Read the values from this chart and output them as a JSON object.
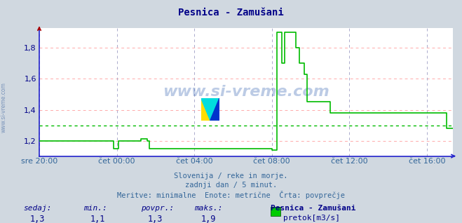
{
  "title": "Pesnica - Zamušani",
  "bg_color": "#d0d8e0",
  "plot_bg_color": "#ffffff",
  "line_color": "#00bb00",
  "avg_line_color": "#00bb00",
  "grid_color_h": "#ffaaaa",
  "grid_color_v": "#aaaacc",
  "axis_color": "#2222cc",
  "text_color": "#000088",
  "xlabel_color": "#336699",
  "ylim_min": 1.1,
  "ylim_max": 1.93,
  "yticks": [
    1.2,
    1.4,
    1.6,
    1.8
  ],
  "ytick_labels": [
    "1,2",
    "1,4",
    "1,6",
    "1,8"
  ],
  "avg_value": 1.3,
  "subtitle1": "Slovenija / reke in morje.",
  "subtitle2": "zadnji dan / 5 minut.",
  "subtitle3": "Meritve: minimalne  Enote: metrične  Črta: povprečje",
  "footer_labels": [
    "sedaj:",
    "min.:",
    "povpr.:",
    "maks.:"
  ],
  "footer_values": [
    "1,3",
    "1,1",
    "1,3",
    "1,9"
  ],
  "legend_title": "Pesnica - Zamušani",
  "legend_label": "pretok[m3/s]",
  "legend_color": "#00cc00",
  "watermark": "www.si-vreme.com",
  "x_tick_labels": [
    "sre 20:00",
    "čet 00:00",
    "čet 04:00",
    "čet 08:00",
    "čet 12:00",
    "čet 16:00"
  ],
  "x_tick_positions": [
    0,
    48,
    96,
    144,
    192,
    240
  ],
  "series": [
    1.2,
    1.2,
    1.2,
    1.2,
    1.2,
    1.2,
    1.2,
    1.2,
    1.2,
    1.2,
    1.2,
    1.2,
    1.2,
    1.2,
    1.2,
    1.2,
    1.2,
    1.2,
    1.2,
    1.2,
    1.2,
    1.2,
    1.2,
    1.2,
    1.2,
    1.2,
    1.2,
    1.2,
    1.2,
    1.2,
    1.2,
    1.2,
    1.2,
    1.2,
    1.2,
    1.2,
    1.2,
    1.2,
    1.2,
    1.2,
    1.2,
    1.2,
    1.2,
    1.2,
    1.2,
    1.2,
    1.15,
    1.15,
    1.15,
    1.2,
    1.2,
    1.2,
    1.2,
    1.2,
    1.2,
    1.2,
    1.2,
    1.2,
    1.2,
    1.2,
    1.2,
    1.2,
    1.2,
    1.21,
    1.21,
    1.21,
    1.21,
    1.2,
    1.15,
    1.15,
    1.15,
    1.15,
    1.15,
    1.15,
    1.15,
    1.15,
    1.15,
    1.15,
    1.15,
    1.15,
    1.15,
    1.15,
    1.15,
    1.15,
    1.15,
    1.15,
    1.15,
    1.15,
    1.15,
    1.15,
    1.15,
    1.15,
    1.15,
    1.15,
    1.15,
    1.15,
    1.15,
    1.15,
    1.15,
    1.15,
    1.15,
    1.15,
    1.15,
    1.15,
    1.15,
    1.15,
    1.15,
    1.15,
    1.15,
    1.15,
    1.15,
    1.15,
    1.15,
    1.15,
    1.15,
    1.15,
    1.15,
    1.15,
    1.15,
    1.15,
    1.15,
    1.15,
    1.15,
    1.15,
    1.15,
    1.15,
    1.15,
    1.15,
    1.15,
    1.15,
    1.15,
    1.15,
    1.15,
    1.15,
    1.15,
    1.15,
    1.15,
    1.15,
    1.15,
    1.15,
    1.15,
    1.15,
    1.15,
    1.15,
    1.14,
    1.14,
    1.14,
    1.9,
    1.9,
    1.9,
    1.7,
    1.7,
    1.9,
    1.9,
    1.9,
    1.9,
    1.9,
    1.9,
    1.9,
    1.8,
    1.8,
    1.7,
    1.7,
    1.7,
    1.63,
    1.63,
    1.45,
    1.45,
    1.45,
    1.45,
    1.45,
    1.45,
    1.45,
    1.45,
    1.45,
    1.45,
    1.45,
    1.45,
    1.45,
    1.45,
    1.38,
    1.38,
    1.38,
    1.38,
    1.38,
    1.38,
    1.38,
    1.38,
    1.38,
    1.38,
    1.38,
    1.38,
    1.38,
    1.38,
    1.38,
    1.38,
    1.38,
    1.38,
    1.38,
    1.38,
    1.38,
    1.38,
    1.38,
    1.38,
    1.38,
    1.38,
    1.38,
    1.38,
    1.38,
    1.38,
    1.38,
    1.38,
    1.38,
    1.38,
    1.38,
    1.38,
    1.38,
    1.38,
    1.38,
    1.38,
    1.38,
    1.38,
    1.38,
    1.38,
    1.38,
    1.38,
    1.38,
    1.38,
    1.38,
    1.38,
    1.38,
    1.38,
    1.38,
    1.38,
    1.38,
    1.38,
    1.38,
    1.38,
    1.38,
    1.38,
    1.38,
    1.38,
    1.38,
    1.38,
    1.38,
    1.38,
    1.38,
    1.38,
    1.38,
    1.38,
    1.38,
    1.38,
    1.28,
    1.28,
    1.28,
    1.28,
    1.28
  ]
}
